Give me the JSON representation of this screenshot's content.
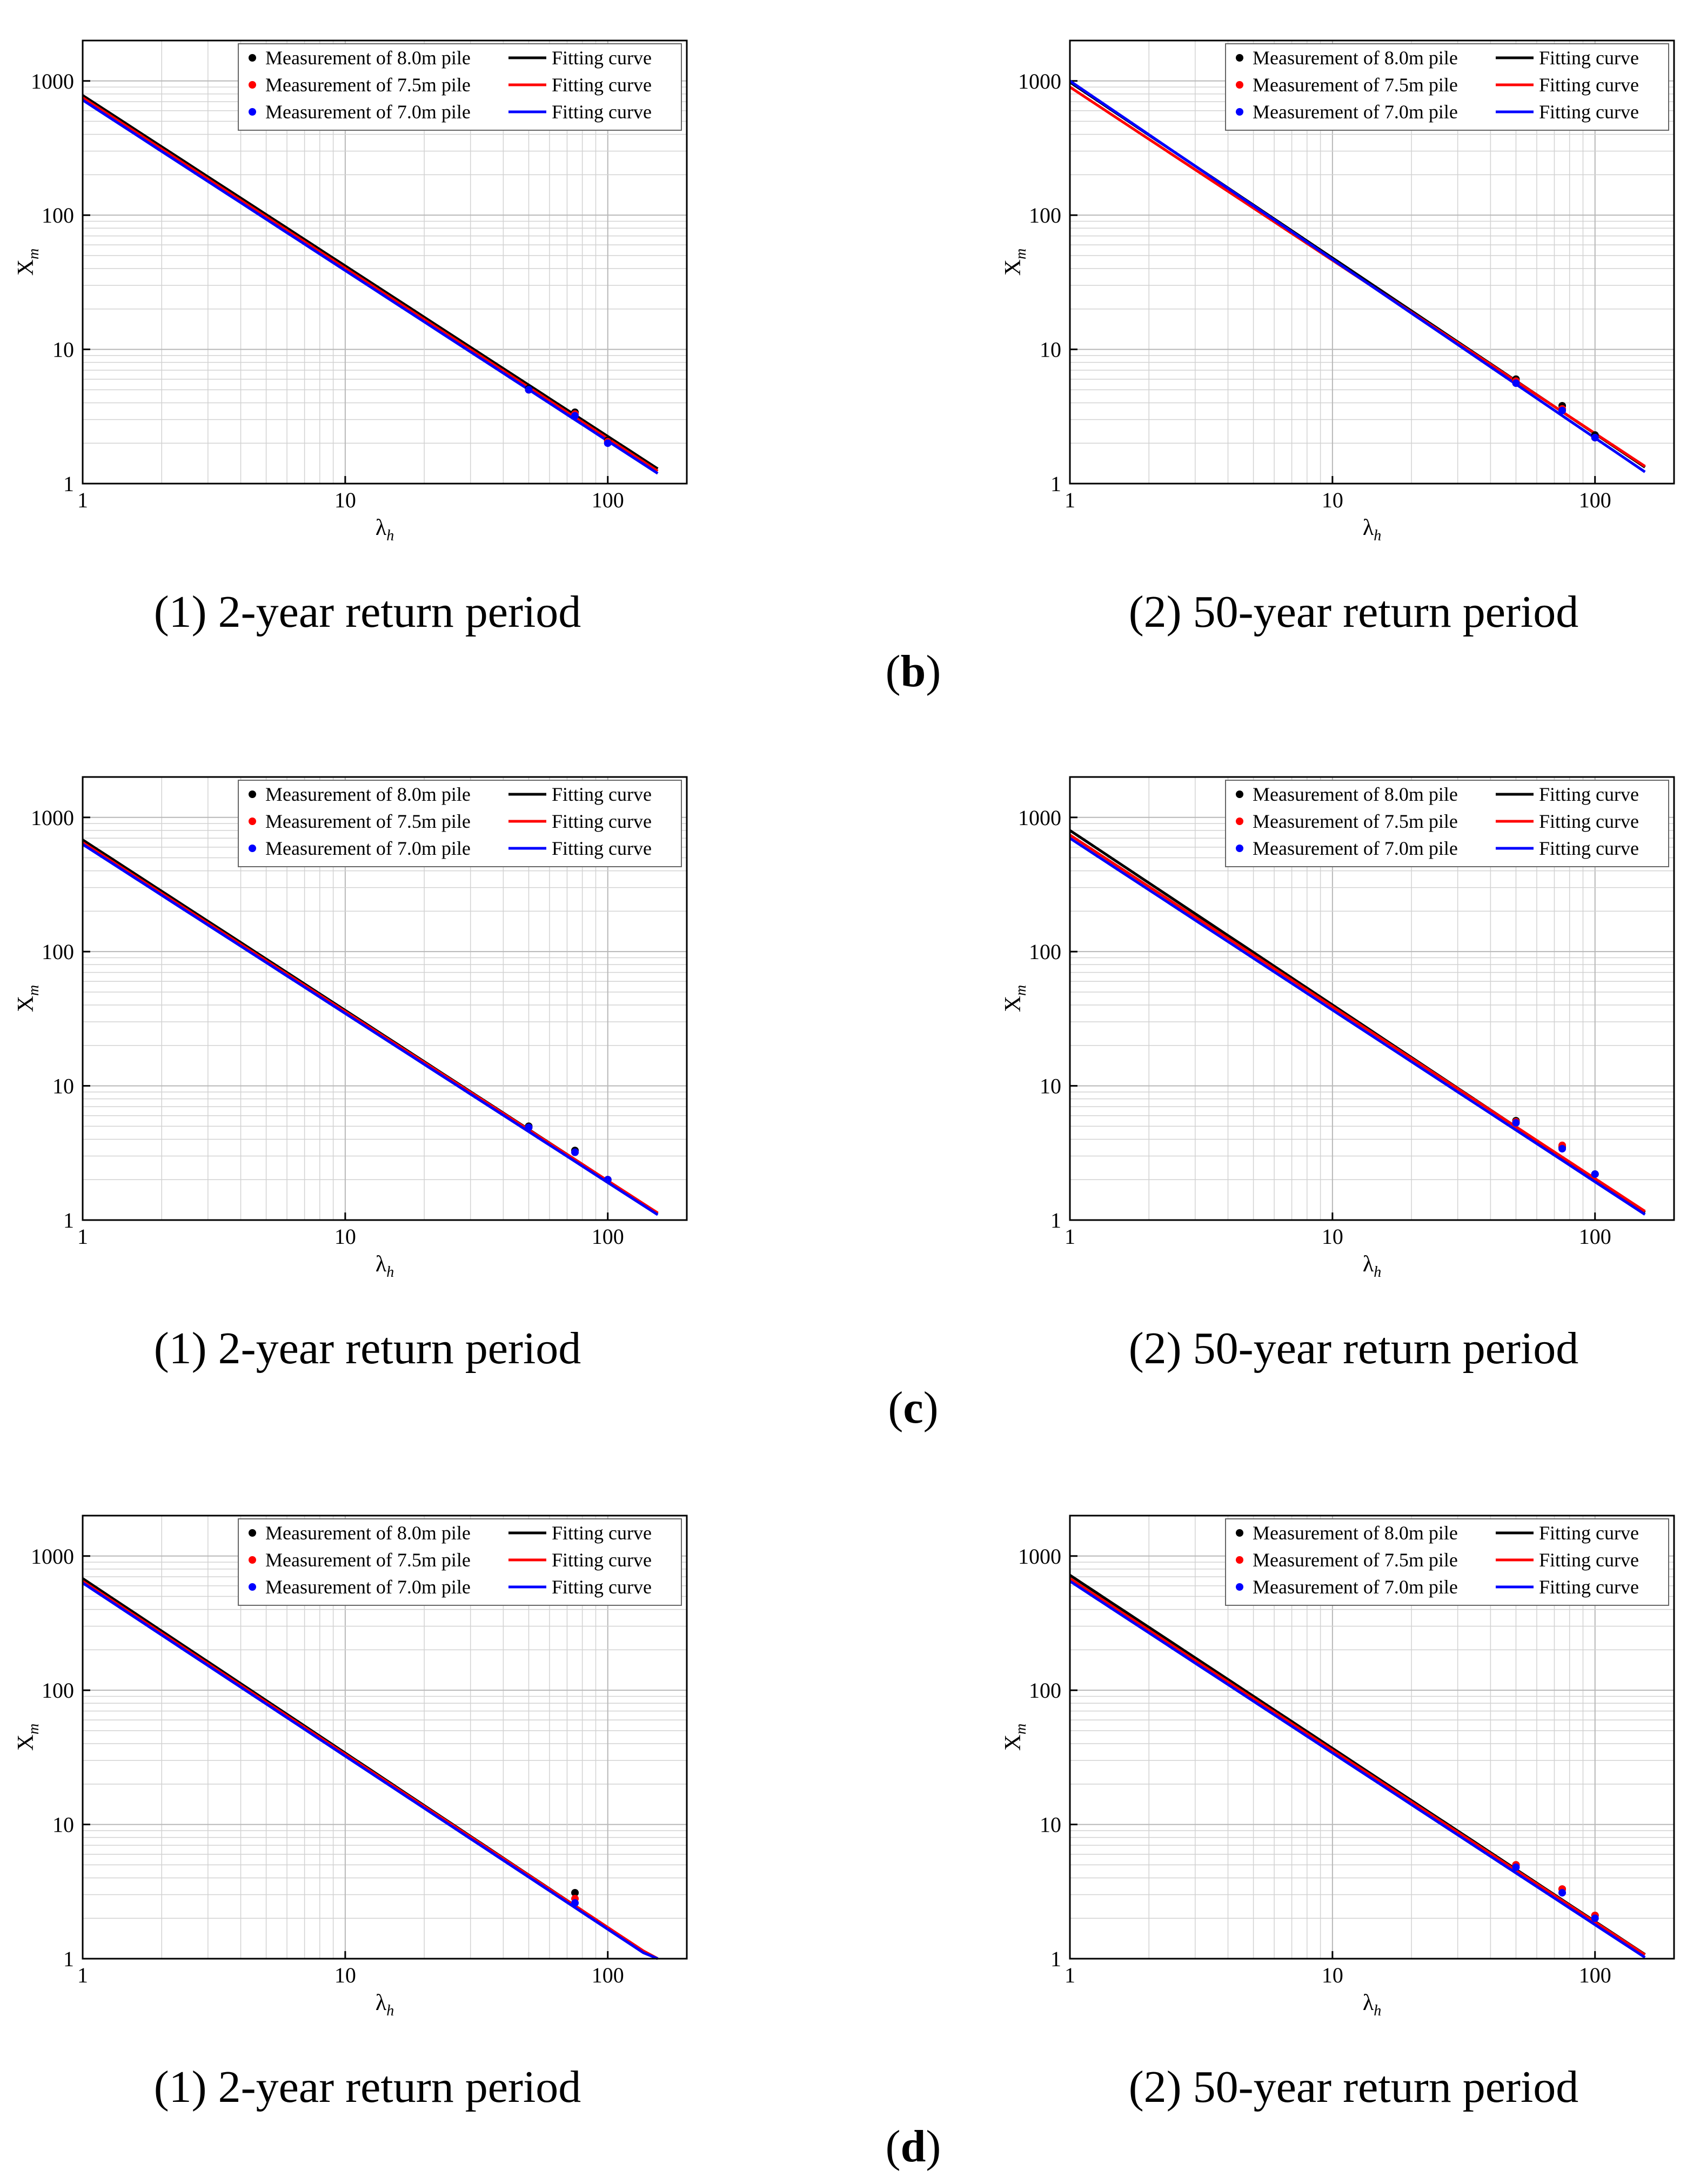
{
  "figure": {
    "rows": [
      {
        "label_open": "(",
        "label_letter": "b",
        "label_close": ")",
        "panels": [
          {
            "caption": "(1) 2-year return period"
          },
          {
            "caption": "(2) 50-year return period"
          }
        ]
      },
      {
        "label_open": "(",
        "label_letter": "c",
        "label_close": ")",
        "panels": [
          {
            "caption": "(1) 2-year return period"
          },
          {
            "caption": "(2) 50-year return period"
          }
        ]
      },
      {
        "label_open": "(",
        "label_letter": "d",
        "label_close": ")",
        "panels": [
          {
            "caption": "(1) 2-year return period"
          },
          {
            "caption": "(2) 50-year return period"
          }
        ]
      }
    ]
  },
  "chart_data": [
    {
      "type": "scatter",
      "xlabel": "λ",
      "xlabel_sub": "h",
      "ylabel": "X",
      "ylabel_sub": "m",
      "xscale": "log",
      "yscale": "log",
      "xlim": [
        1,
        200
      ],
      "ylim": [
        1,
        2000
      ],
      "x_ticks": [
        "1",
        "10",
        "100"
      ],
      "y_ticks": [
        "1",
        "10",
        "100",
        "1000"
      ],
      "grid": true,
      "legend_position": "top-right",
      "series": [
        {
          "name": "Measurement of 8.0m pile",
          "fit_name": "Fitting curve",
          "color": "#000000",
          "points": [
            [
              50,
              5.1
            ],
            [
              75,
              3.4
            ],
            [
              100,
              2.1
            ]
          ],
          "fit_coef": 780,
          "fit_exp": -1.27
        },
        {
          "name": "Measurement of 7.5m pile",
          "fit_name": "Fitting curve",
          "color": "#ff0000",
          "points": [
            [
              50,
              5.0
            ],
            [
              75,
              3.3
            ],
            [
              100,
              2.05
            ]
          ],
          "fit_coef": 750,
          "fit_exp": -1.27
        },
        {
          "name": "Measurement of 7.0m pile",
          "fit_name": "Fitting curve",
          "color": "#0000ff",
          "points": [
            [
              50,
              5.0
            ],
            [
              75,
              3.2
            ],
            [
              100,
              2.0
            ]
          ],
          "fit_coef": 720,
          "fit_exp": -1.27
        }
      ]
    },
    {
      "type": "scatter",
      "xlabel": "λ",
      "xlabel_sub": "h",
      "ylabel": "X",
      "ylabel_sub": "m",
      "xscale": "log",
      "yscale": "log",
      "xlim": [
        1,
        200
      ],
      "ylim": [
        1,
        2000
      ],
      "x_ticks": [
        "1",
        "10",
        "100"
      ],
      "y_ticks": [
        "1",
        "10",
        "100",
        "1000"
      ],
      "grid": true,
      "legend_position": "top-right",
      "series": [
        {
          "name": "Measurement of 8.0m pile",
          "fit_name": "Fitting curve",
          "color": "#000000",
          "points": [
            [
              50,
              6.0
            ],
            [
              75,
              3.8
            ],
            [
              100,
              2.3
            ]
          ],
          "fit_coef": 980,
          "fit_exp": -1.31
        },
        {
          "name": "Measurement of 7.5m pile",
          "fit_name": "Fitting curve",
          "color": "#ff0000",
          "points": [
            [
              50,
              5.8
            ],
            [
              75,
              3.6
            ],
            [
              100,
              2.2
            ]
          ],
          "fit_coef": 900,
          "fit_exp": -1.29
        },
        {
          "name": "Measurement of 7.0m pile",
          "fit_name": "Fitting curve",
          "color": "#0000ff",
          "points": [
            [
              50,
              5.6
            ],
            [
              75,
              3.5
            ],
            [
              100,
              2.2
            ]
          ],
          "fit_coef": 1000,
          "fit_exp": -1.33
        }
      ]
    },
    {
      "type": "scatter",
      "xlabel": "λ",
      "xlabel_sub": "h",
      "ylabel": "X",
      "ylabel_sub": "m",
      "xscale": "log",
      "yscale": "log",
      "xlim": [
        1,
        200
      ],
      "ylim": [
        1,
        2000
      ],
      "x_ticks": [
        "1",
        "10",
        "100"
      ],
      "y_ticks": [
        "1",
        "10",
        "100",
        "1000"
      ],
      "grid": true,
      "legend_position": "top-right",
      "series": [
        {
          "name": "Measurement of 8.0m pile",
          "fit_name": "Fitting curve",
          "color": "#000000",
          "points": [
            [
              50,
              5.0
            ],
            [
              75,
              3.3
            ],
            [
              100,
              2.0
            ]
          ],
          "fit_coef": 680,
          "fit_exp": -1.27
        },
        {
          "name": "Measurement of 7.5m pile",
          "fit_name": "Fitting curve",
          "color": "#ff0000",
          "points": [
            [
              50,
              4.9
            ],
            [
              75,
              3.2
            ],
            [
              100,
              2.0
            ]
          ],
          "fit_coef": 650,
          "fit_exp": -1.26
        },
        {
          "name": "Measurement of 7.0m pile",
          "fit_name": "Fitting curve",
          "color": "#0000ff",
          "points": [
            [
              50,
              4.9
            ],
            [
              75,
              3.2
            ],
            [
              100,
              2.0
            ]
          ],
          "fit_coef": 630,
          "fit_exp": -1.26
        }
      ]
    },
    {
      "type": "scatter",
      "xlabel": "λ",
      "xlabel_sub": "h",
      "ylabel": "X",
      "ylabel_sub": "m",
      "xscale": "log",
      "yscale": "log",
      "xlim": [
        1,
        200
      ],
      "ylim": [
        1,
        2000
      ],
      "x_ticks": [
        "1",
        "10",
        "100"
      ],
      "y_ticks": [
        "1",
        "10",
        "100",
        "1000"
      ],
      "grid": true,
      "legend_position": "top-right",
      "series": [
        {
          "name": "Measurement of 8.0m pile",
          "fit_name": "Fitting curve",
          "color": "#000000",
          "points": [
            [
              50,
              5.5
            ],
            [
              75,
              3.5
            ],
            [
              100,
              2.2
            ]
          ],
          "fit_coef": 800,
          "fit_exp": -1.3
        },
        {
          "name": "Measurement of 7.5m pile",
          "fit_name": "Fitting curve",
          "color": "#ff0000",
          "points": [
            [
              50,
              5.4
            ],
            [
              75,
              3.6
            ],
            [
              100,
              2.2
            ]
          ],
          "fit_coef": 740,
          "fit_exp": -1.28
        },
        {
          "name": "Measurement of 7.0m pile",
          "fit_name": "Fitting curve",
          "color": "#0000ff",
          "points": [
            [
              50,
              5.3
            ],
            [
              75,
              3.4
            ],
            [
              100,
              2.2
            ]
          ],
          "fit_coef": 700,
          "fit_exp": -1.28
        }
      ]
    },
    {
      "type": "scatter",
      "xlabel": "λ",
      "xlabel_sub": "h",
      "ylabel": "X",
      "ylabel_sub": "m",
      "xscale": "log",
      "yscale": "log",
      "xlim": [
        1,
        200
      ],
      "ylim": [
        1,
        2000
      ],
      "x_ticks": [
        "1",
        "10",
        "100"
      ],
      "y_ticks": [
        "1",
        "10",
        "100",
        "1000"
      ],
      "grid": true,
      "legend_position": "top-right",
      "series": [
        {
          "name": "Measurement of 8.0m pile",
          "fit_name": "Fitting curve",
          "color": "#000000",
          "points": [
            [
              75,
              3.1
            ]
          ],
          "fit_coef": 680,
          "fit_exp": -1.3
        },
        {
          "name": "Measurement of 7.5m pile",
          "fit_name": "Fitting curve",
          "color": "#ff0000",
          "points": [
            [
              75,
              2.8
            ]
          ],
          "fit_coef": 650,
          "fit_exp": -1.29
        },
        {
          "name": "Measurement of 7.0m pile",
          "fit_name": "Fitting curve",
          "color": "#0000ff",
          "points": [
            [
              75,
              2.6
            ]
          ],
          "fit_coef": 630,
          "fit_exp": -1.29
        }
      ]
    },
    {
      "type": "scatter",
      "xlabel": "λ",
      "xlabel_sub": "h",
      "ylabel": "X",
      "ylabel_sub": "m",
      "xscale": "log",
      "yscale": "log",
      "xlim": [
        1,
        200
      ],
      "ylim": [
        1,
        2000
      ],
      "x_ticks": [
        "1",
        "10",
        "100"
      ],
      "y_ticks": [
        "1",
        "10",
        "100",
        "1000"
      ],
      "grid": true,
      "legend_position": "top-right",
      "series": [
        {
          "name": "Measurement of 8.0m pile",
          "fit_name": "Fitting curve",
          "color": "#000000",
          "points": [
            [
              50,
              5.0
            ],
            [
              75,
              3.3
            ],
            [
              100,
              2.1
            ]
          ],
          "fit_coef": 720,
          "fit_exp": -1.29
        },
        {
          "name": "Measurement of 7.5m pile",
          "fit_name": "Fitting curve",
          "color": "#ff0000",
          "points": [
            [
              50,
              5.0
            ],
            [
              75,
              3.3
            ],
            [
              100,
              2.1
            ]
          ],
          "fit_coef": 680,
          "fit_exp": -1.28
        },
        {
          "name": "Measurement of 7.0m pile",
          "fit_name": "Fitting curve",
          "color": "#0000ff",
          "points": [
            [
              50,
              4.8
            ],
            [
              75,
              3.1
            ],
            [
              100,
              2.0
            ]
          ],
          "fit_coef": 650,
          "fit_exp": -1.28
        }
      ]
    }
  ]
}
